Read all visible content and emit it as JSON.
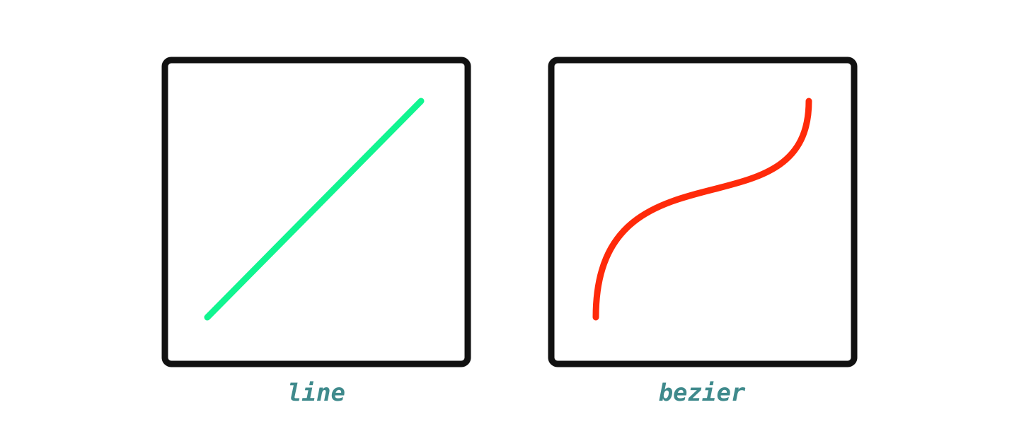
{
  "colors": {
    "background": "#ffffff",
    "frame": "#111111",
    "line_stroke": "#11f590",
    "bezier_stroke": "#ff2a0a",
    "label": "#3f8a8c"
  },
  "panels": [
    {
      "id": "line",
      "label": "line"
    },
    {
      "id": "bezier",
      "label": "bezier"
    }
  ]
}
